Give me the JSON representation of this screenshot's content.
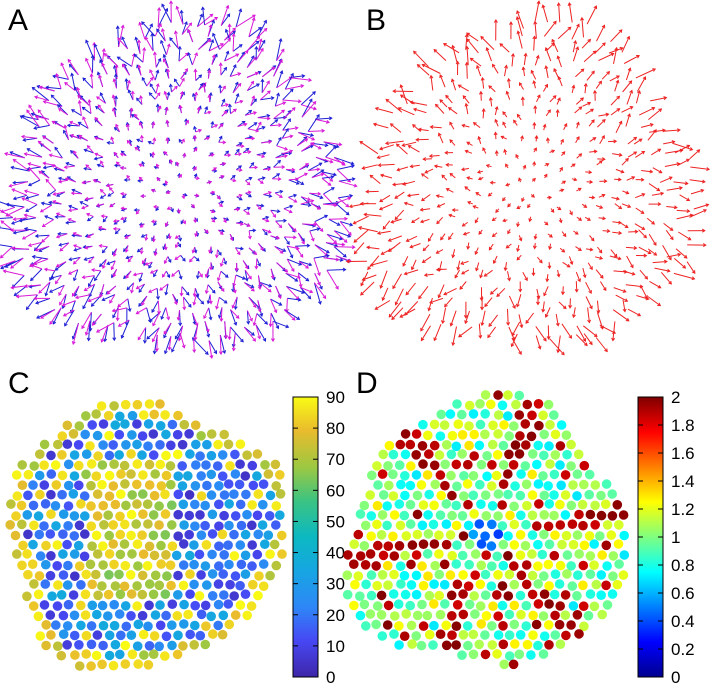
{
  "figure": {
    "panels": [
      {
        "letter": "A"
      },
      {
        "letter": "B"
      },
      {
        "letter": "C"
      },
      {
        "letter": "D"
      }
    ]
  },
  "chart_data": [
    {
      "panel": "A",
      "type": "scatter",
      "title": "",
      "xlabel": "",
      "ylabel": "",
      "axes_visible": false,
      "grid": false,
      "series": [
        {
          "glyph": "arrow",
          "color": "#1f1fd6"
        },
        {
          "glyph": "arrow",
          "color": "#d81ad8"
        }
      ]
    },
    {
      "panel": "B",
      "type": "scatter",
      "title": "",
      "xlabel": "",
      "ylabel": "",
      "axes_visible": false,
      "grid": false,
      "series": [
        {
          "glyph": "arrow",
          "color": "#ee2222"
        }
      ]
    },
    {
      "panel": "C",
      "type": "scatter",
      "title": "",
      "xlabel": "",
      "ylabel": "",
      "axes_visible": false,
      "grid": false,
      "colormap": "parula",
      "colorbar": {
        "range": [
          0,
          90
        ],
        "ticks": [
          "0",
          "10",
          "20",
          "30",
          "40",
          "50",
          "60",
          "70",
          "80",
          "90"
        ]
      }
    },
    {
      "panel": "D",
      "type": "scatter",
      "title": "",
      "xlabel": "",
      "ylabel": "",
      "axes_visible": false,
      "grid": false,
      "colormap": "jet",
      "colorbar": {
        "range": [
          0,
          2
        ],
        "ticks": [
          "0",
          "0.2",
          "0.4",
          "0.6",
          "0.8",
          "1",
          "1.2",
          "1.4",
          "1.6",
          "1.8",
          "2"
        ]
      }
    }
  ]
}
